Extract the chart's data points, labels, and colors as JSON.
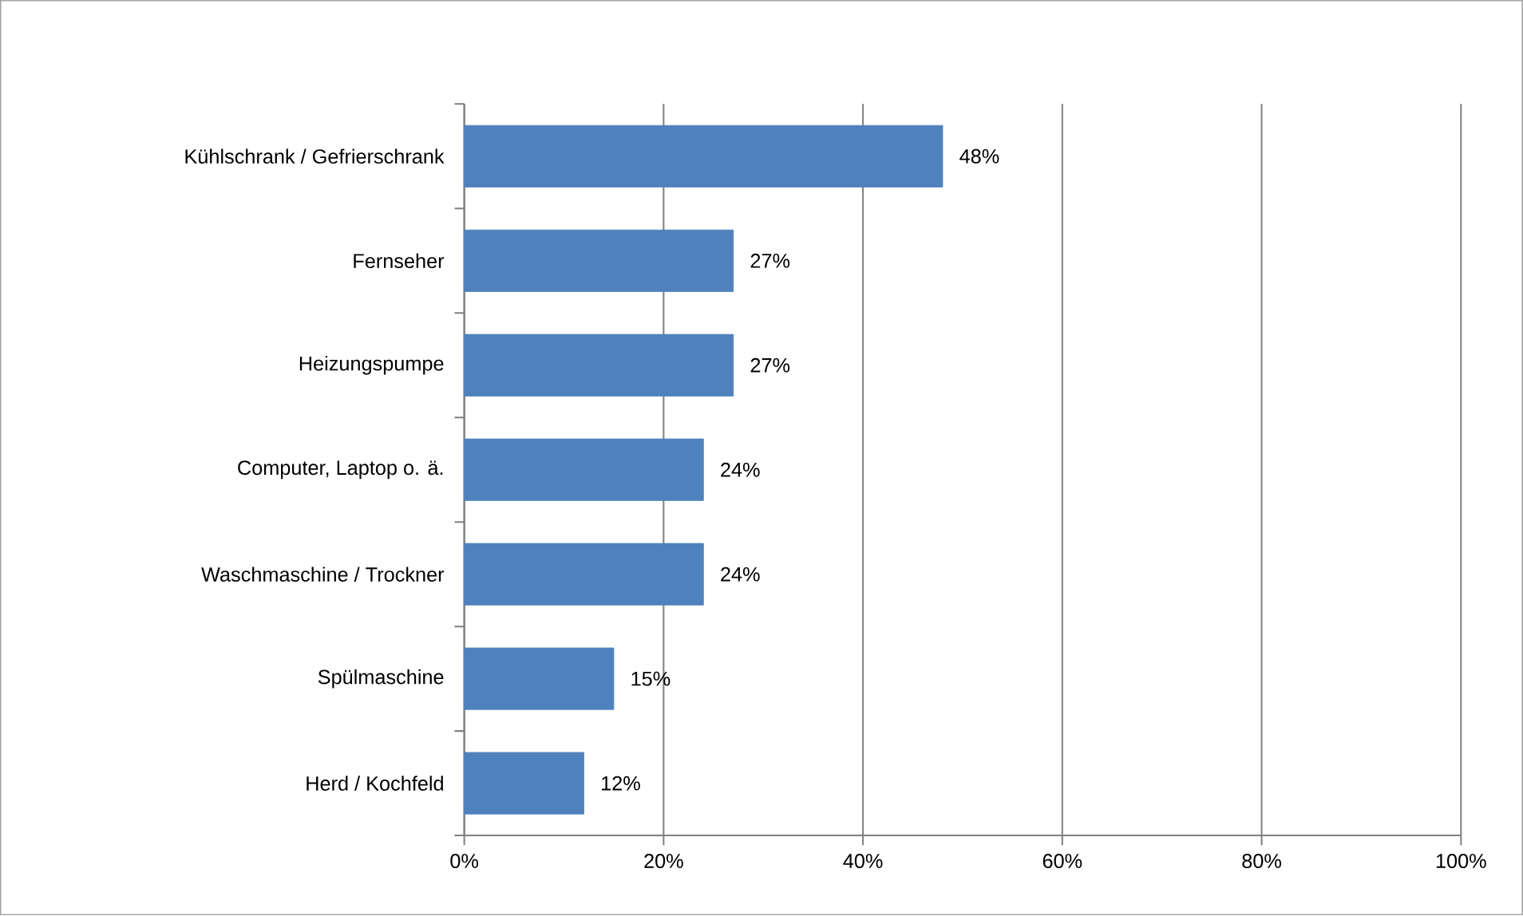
{
  "chart_data": {
    "type": "bar",
    "orientation": "horizontal",
    "categories": [
      "Kühlschrank / Gefrierschrank",
      "Fernseher",
      "Heizungspumpe",
      "Computer, Laptop o. ä.",
      "Waschmaschine / Trockner",
      "Spülmaschine",
      "Herd / Kochfeld"
    ],
    "values": [
      48,
      27,
      27,
      24,
      24,
      15,
      12
    ],
    "value_labels": [
      "48%",
      "27%",
      "27%",
      "24%",
      "24%",
      "15%",
      "12%"
    ],
    "color": "#4f81bd",
    "xlim": [
      0,
      100
    ],
    "xticks": [
      {
        "value": 0,
        "label": "0%"
      },
      {
        "value": 20,
        "label": "20%"
      },
      {
        "value": 40,
        "label": "40%"
      },
      {
        "value": 60,
        "label": "60%"
      },
      {
        "value": 80,
        "label": "80%"
      },
      {
        "value": 100,
        "label": "100%"
      }
    ],
    "grid": "x"
  }
}
